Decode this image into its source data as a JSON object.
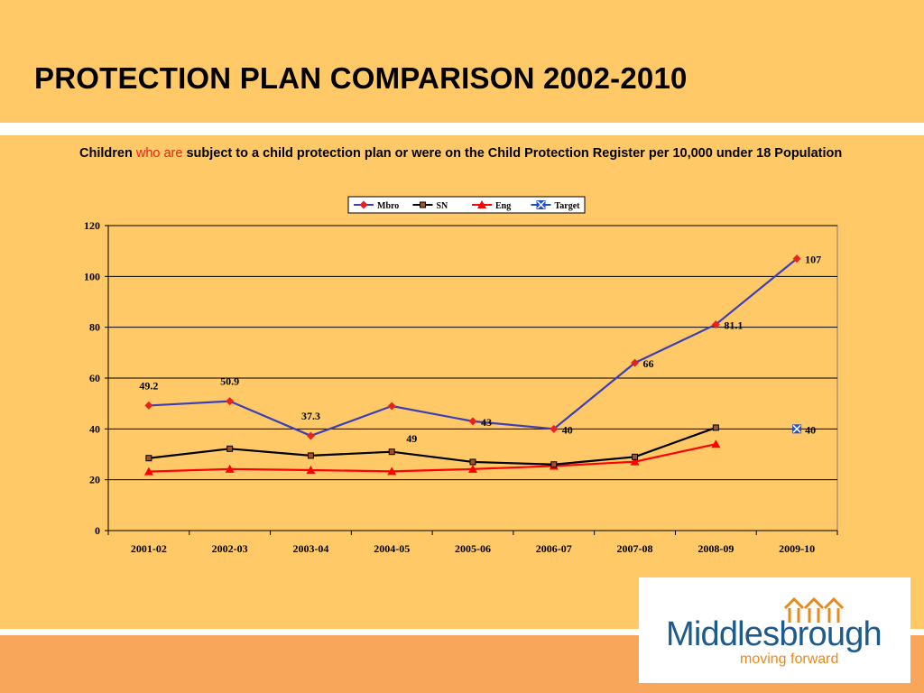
{
  "slide": {
    "title": "PROTECTION PLAN COMPARISON 2002-2010",
    "subtitle_part1": "Children ",
    "subtitle_part2": "who are",
    "subtitle_part3": " subject to a child protection plan or were on the Child Protection Register per 10,000 under 18 Population"
  },
  "logo": {
    "name": "Middlesbrough",
    "tagline": "moving forward"
  },
  "colors": {
    "background": "#FEC966",
    "bottom_band": "#F8A65A",
    "accent_red": "#E8231E"
  },
  "chart_data": {
    "type": "line",
    "categories": [
      "2001-02",
      "2002-03",
      "2003-04",
      "2004-05",
      "2005-06",
      "2006-07",
      "2007-08",
      "2008-09",
      "2009-10"
    ],
    "ylim": [
      0,
      120
    ],
    "yticks": [
      0,
      20,
      40,
      60,
      80,
      100,
      120
    ],
    "grid": true,
    "legend_position": "top",
    "series": [
      {
        "name": "Mbro",
        "values": [
          49.2,
          50.9,
          37.3,
          49,
          43,
          40,
          66,
          81.1,
          107
        ],
        "line_color": "#3C3FB5",
        "marker": "diamond",
        "marker_color": "#E8231E"
      },
      {
        "name": "SN",
        "values": [
          28.5,
          32.2,
          29.5,
          31,
          27,
          26,
          29,
          40.5,
          null
        ],
        "line_color": "#000000",
        "marker": "square",
        "marker_color": "#A0522D"
      },
      {
        "name": "Eng",
        "values": [
          23.2,
          24.2,
          23.8,
          23.3,
          24.2,
          25.4,
          27.1,
          34,
          null
        ],
        "line_color": "#FF0000",
        "marker": "triangle",
        "marker_color": "#FF0000"
      },
      {
        "name": "Target",
        "values": [
          null,
          null,
          null,
          null,
          null,
          null,
          null,
          null,
          40
        ],
        "line_color": "#1F4FC9",
        "marker": "x-square",
        "marker_color": "#1F4FC9"
      }
    ],
    "data_labels": [
      {
        "text": "49.2",
        "category": "2001-02",
        "value": 49.2,
        "position": "above"
      },
      {
        "text": "50.9",
        "category": "2002-03",
        "value": 50.9,
        "position": "above"
      },
      {
        "text": "37.3",
        "category": "2003-04",
        "value": 37.3,
        "position": "above"
      },
      {
        "text": "49",
        "category": "2004-05",
        "value": 49,
        "position": "below"
      },
      {
        "text": "43",
        "category": "2005-06",
        "value": 43,
        "position": "right"
      },
      {
        "text": "40",
        "category": "2006-07",
        "value": 40,
        "position": "right"
      },
      {
        "text": "66",
        "category": "2007-08",
        "value": 66,
        "position": "right"
      },
      {
        "text": "81.1",
        "category": "2008-09",
        "value": 81.1,
        "position": "right"
      },
      {
        "text": "107",
        "category": "2009-10",
        "value": 107,
        "position": "right"
      },
      {
        "text": "40",
        "category": "2009-10",
        "value": 40,
        "position": "right"
      }
    ]
  }
}
